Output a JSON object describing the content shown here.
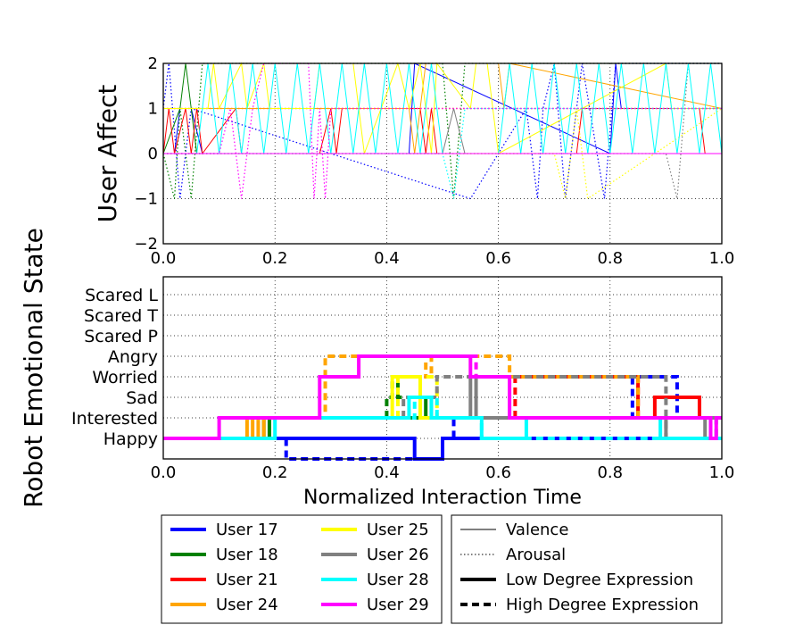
{
  "chart_data": [
    {
      "type": "line",
      "ylabel": "User Affect",
      "xlim": [
        0.0,
        1.0
      ],
      "ylim": [
        -2,
        2
      ],
      "xticks": [
        "0.0",
        "0.2",
        "0.4",
        "0.6",
        "0.8",
        "1.0"
      ],
      "yticks": [
        "−2",
        "−1",
        "0",
        "1",
        "2"
      ],
      "grid": true,
      "series": [
        {
          "name": "User 17",
          "color": "#0000ff",
          "valence_x": [
            0,
            0.02,
            0.03,
            0.05,
            0.07,
            0.44,
            0.45,
            0.8,
            0.81,
            0.82,
            1.0
          ],
          "valence_y": [
            0,
            0,
            1,
            1,
            0,
            0,
            2,
            0,
            2,
            1,
            1
          ],
          "arousal_x": [
            0,
            0.01,
            0.03,
            0.05,
            0.55,
            0.65,
            0.66,
            0.67,
            0.68,
            0.7,
            0.72,
            0.75,
            0.79,
            0.81,
            1.0
          ],
          "arousal_y": [
            1,
            2,
            -1,
            1,
            -1,
            1,
            0,
            -1,
            1,
            2,
            -1,
            2,
            -1,
            2,
            2
          ]
        },
        {
          "name": "User 18",
          "color": "#008000",
          "valence_x": [
            0,
            0.03,
            0.04,
            0.05,
            0.06,
            1.0
          ],
          "valence_y": [
            0,
            1,
            2,
            1,
            0,
            0
          ],
          "arousal_x": [
            0,
            0.02,
            0.03,
            0.05,
            0.07,
            0.5,
            0.52,
            0.54,
            1.0
          ],
          "arousal_y": [
            0,
            -1,
            1,
            -1,
            2,
            2,
            -1,
            2,
            2
          ]
        },
        {
          "name": "User 21",
          "color": "#ff0000",
          "valence_x": [
            0,
            0.01,
            0.02,
            0.04,
            0.05,
            0.06,
            0.07,
            0.13,
            0.14,
            0.28,
            0.3,
            0.31,
            0.32,
            0.46,
            0.47,
            0.48,
            0.49,
            0.74,
            0.75,
            0.96,
            0.97,
            1.0
          ],
          "valence_y": [
            0,
            1,
            0,
            1,
            0,
            1,
            0,
            1,
            0,
            0,
            1,
            0,
            1,
            1,
            0,
            1,
            0,
            0,
            1,
            1,
            0,
            0
          ],
          "arousal_x": [
            0,
            0.5,
            1.0
          ],
          "arousal_y": [
            1,
            1,
            1
          ]
        },
        {
          "name": "User 24",
          "color": "#ffa500",
          "valence_x": [
            0,
            0.44,
            0.45,
            0.46,
            0.47,
            0.6,
            0.61,
            0.62,
            1.0
          ],
          "valence_y": [
            1,
            1,
            0,
            1,
            2,
            2,
            1,
            2,
            1
          ],
          "arousal_x": [
            0,
            1.0
          ],
          "arousal_y": [
            1,
            1
          ]
        },
        {
          "name": "User 25",
          "color": "#ffff00",
          "valence_x": [
            0,
            0.08,
            0.09,
            0.1,
            0.14,
            0.15,
            0.18,
            0.19,
            0.27,
            0.28,
            0.34,
            0.36,
            0.42,
            0.44,
            0.46,
            0.48,
            0.49,
            0.55,
            0.56,
            0.58,
            0.6,
            0.9,
            0.91,
            1.0
          ],
          "valence_y": [
            1,
            1,
            2,
            1,
            2,
            1,
            2,
            1,
            1,
            2,
            2,
            0,
            2,
            1,
            2,
            0,
            2,
            1,
            2,
            2,
            0,
            2,
            1,
            1
          ],
          "arousal_x": [
            0,
            0.5,
            0.7,
            0.72,
            0.74,
            0.76,
            1.0
          ],
          "arousal_y": [
            0,
            0,
            0,
            -1,
            1,
            -1,
            1
          ]
        },
        {
          "name": "User 26",
          "color": "#808080",
          "valence_x": [
            0,
            0.5,
            0.52,
            0.54,
            0.56,
            1.0
          ],
          "valence_y": [
            0,
            0,
            1,
            0,
            0,
            0
          ],
          "arousal_x": [
            0,
            0.9,
            0.92,
            0.94,
            1.0
          ],
          "arousal_y": [
            0,
            0,
            -1,
            2,
            2
          ]
        },
        {
          "name": "User 28",
          "color": "#00ffff",
          "valence_x": [
            0,
            0.06,
            0.08,
            0.1,
            0.12,
            0.14,
            0.16,
            0.18,
            0.2,
            0.22,
            0.24,
            0.26,
            0.28,
            0.3,
            0.32,
            0.34,
            0.36,
            0.38,
            0.4,
            0.42,
            0.44,
            0.46,
            0.48,
            0.5,
            0.6,
            0.62,
            0.64,
            0.66,
            0.68,
            0.7,
            0.72,
            0.74,
            0.76,
            0.78,
            0.8,
            0.82,
            0.84,
            0.86,
            0.88,
            0.9,
            0.92,
            0.94,
            0.96,
            0.98,
            1.0
          ],
          "valence_y": [
            0,
            0,
            2,
            0,
            2,
            0,
            2,
            0,
            2,
            0,
            2,
            0,
            2,
            0,
            2,
            0,
            2,
            0,
            2,
            0,
            2,
            0,
            2,
            0,
            0,
            2,
            0,
            2,
            0,
            2,
            0,
            2,
            0,
            2,
            0,
            2,
            0,
            2,
            0,
            2,
            0,
            2,
            0,
            2,
            0
          ],
          "arousal_x": [
            0,
            0.5,
            0.52,
            0.54,
            1.0
          ],
          "arousal_y": [
            0,
            0,
            -1,
            1,
            1
          ]
        },
        {
          "name": "User 29",
          "color": "#ff00ff",
          "valence_x": [
            0,
            1.0
          ],
          "valence_y": [
            0,
            0
          ],
          "arousal_x": [
            0,
            0.1,
            0.12,
            0.14,
            0.16,
            0.18,
            0.26,
            0.27,
            0.28,
            0.29,
            0.3,
            1.0
          ],
          "arousal_y": [
            0,
            0,
            1,
            -1,
            1,
            2,
            2,
            -1,
            1,
            -1,
            1,
            1
          ]
        }
      ],
      "line_style_legend": [
        {
          "label": "Valence",
          "style": "solid-thin"
        },
        {
          "label": "Arousal",
          "style": "dotted-thin"
        }
      ]
    },
    {
      "type": "line",
      "ylabel": "Robot Emotional State",
      "xlabel": "Normalized Interaction Time",
      "xlim": [
        0.0,
        1.0
      ],
      "xticks": [
        "0.0",
        "0.2",
        "0.4",
        "0.6",
        "0.8",
        "1.0"
      ],
      "categories": [
        "Happy",
        "Interested",
        "Sad",
        "Worried",
        "Angry",
        "Scared P",
        "Scared T",
        "Scared L"
      ],
      "grid": true,
      "series": [
        {
          "name": "User 17",
          "color": "#0000ff",
          "low": [
            [
              0,
              0
            ],
            [
              0.45,
              0
            ],
            [
              0.45,
              -1
            ],
            [
              0.5,
              -1
            ],
            [
              0.5,
              0
            ],
            [
              1.0,
              0
            ]
          ],
          "high": [
            [
              0.2,
              0
            ],
            [
              0.22,
              0
            ],
            [
              0.22,
              -1
            ],
            [
              0.5,
              -1
            ],
            [
              0.5,
              0
            ],
            [
              0.52,
              0
            ],
            [
              0.52,
              1
            ],
            [
              0.84,
              1
            ],
            [
              0.84,
              3
            ],
            [
              0.92,
              3
            ],
            [
              0.92,
              1
            ],
            [
              1.0,
              1
            ]
          ]
        },
        {
          "name": "User 18",
          "color": "#008000",
          "low": [
            [
              0.18,
              1
            ],
            [
              0.18,
              0
            ],
            [
              0.19,
              0
            ],
            [
              0.19,
              1
            ],
            [
              0.47,
              1
            ],
            [
              0.47,
              2
            ],
            [
              0.48,
              2
            ],
            [
              0.48,
              1
            ],
            [
              1.0,
              1
            ]
          ],
          "high": [
            [
              0.4,
              1
            ],
            [
              0.4,
              2
            ],
            [
              0.41,
              2
            ],
            [
              0.41,
              3
            ],
            [
              0.42,
              3
            ],
            [
              0.42,
              2
            ],
            [
              0.47,
              2
            ]
          ]
        },
        {
          "name": "User 21",
          "color": "#ff0000",
          "low": [
            [
              0.62,
              3
            ],
            [
              0.85,
              3
            ],
            [
              0.85,
              1
            ],
            [
              0.88,
              1
            ],
            [
              0.88,
              2
            ],
            [
              0.96,
              2
            ],
            [
              0.96,
              1
            ],
            [
              1.0,
              1
            ]
          ],
          "high": [
            [
              0.63,
              1
            ],
            [
              0.63,
              3
            ],
            [
              0.85,
              3
            ],
            [
              0.85,
              1
            ]
          ]
        },
        {
          "name": "User 24",
          "color": "#ffa500",
          "low": [
            [
              0.15,
              0
            ],
            [
              0.15,
              1
            ],
            [
              0.16,
              1
            ],
            [
              0.16,
              0
            ],
            [
              0.17,
              0
            ],
            [
              0.17,
              1
            ],
            [
              0.18,
              1
            ],
            [
              0.18,
              0
            ]
          ],
          "high": [
            [
              0.28,
              1
            ],
            [
              0.29,
              1
            ],
            [
              0.29,
              4
            ],
            [
              0.47,
              4
            ],
            [
              0.47,
              3
            ],
            [
              0.48,
              3
            ],
            [
              0.48,
              4
            ],
            [
              0.62,
              4
            ],
            [
              0.62,
              3
            ],
            [
              0.85,
              3
            ],
            [
              0.85,
              1
            ]
          ]
        },
        {
          "name": "User 25",
          "color": "#ffff00",
          "low": [
            [
              0.41,
              1
            ],
            [
              0.41,
              3
            ],
            [
              0.46,
              3
            ],
            [
              0.46,
              1
            ],
            [
              0.49,
              1
            ]
          ],
          "high": [
            [
              0.42,
              1
            ],
            [
              0.42,
              3
            ],
            [
              0.49,
              3
            ],
            [
              0.49,
              1
            ]
          ]
        },
        {
          "name": "User 26",
          "color": "#808080",
          "low": [
            [
              0.55,
              1
            ],
            [
              0.55,
              3
            ],
            [
              0.56,
              3
            ],
            [
              0.56,
              1
            ],
            [
              0.9,
              1
            ],
            [
              0.9,
              0
            ],
            [
              0.97,
              0
            ],
            [
              0.97,
              1
            ],
            [
              1.0,
              1
            ]
          ],
          "high": [
            [
              0.43,
              1
            ],
            [
              0.43,
              2
            ],
            [
              0.49,
              2
            ],
            [
              0.49,
              3
            ],
            [
              0.57,
              3
            ],
            [
              0.9,
              3
            ],
            [
              0.9,
              0
            ],
            [
              0.99,
              0
            ],
            [
              0.99,
              1
            ],
            [
              1.0,
              1
            ]
          ]
        },
        {
          "name": "User 28",
          "color": "#00ffff",
          "low": [
            [
              0.1,
              0
            ],
            [
              0.2,
              0
            ],
            [
              0.2,
              1
            ],
            [
              0.44,
              1
            ],
            [
              0.44,
              2
            ],
            [
              0.48,
              2
            ],
            [
              0.48,
              1
            ],
            [
              0.57,
              1
            ],
            [
              0.57,
              0
            ],
            [
              0.65,
              0
            ],
            [
              0.65,
              1
            ],
            [
              0.89,
              1
            ],
            [
              0.89,
              0
            ],
            [
              1.0,
              0
            ]
          ],
          "high": [
            [
              0.3,
              1
            ],
            [
              0.45,
              1
            ],
            [
              0.45,
              2
            ],
            [
              0.49,
              2
            ],
            [
              0.49,
              1
            ],
            [
              0.5,
              1
            ],
            [
              0.57,
              1
            ],
            [
              0.57,
              0
            ],
            [
              1.0,
              0
            ]
          ]
        },
        {
          "name": "User 29",
          "color": "#ff00ff",
          "low": [
            [
              0,
              0
            ],
            [
              0.1,
              0
            ],
            [
              0.1,
              1
            ],
            [
              0.28,
              1
            ],
            [
              0.28,
              3
            ],
            [
              0.35,
              3
            ],
            [
              0.35,
              4
            ],
            [
              0.55,
              4
            ],
            [
              0.55,
              3
            ],
            [
              0.62,
              3
            ],
            [
              0.62,
              1
            ],
            [
              0.98,
              1
            ],
            [
              0.98,
              0
            ],
            [
              0.99,
              0
            ],
            [
              0.99,
              1
            ],
            [
              1.0,
              1
            ]
          ],
          "high": [
            [
              0.55,
              4
            ],
            [
              0.56,
              4
            ],
            [
              0.56,
              3
            ],
            [
              0.62,
              3
            ]
          ]
        }
      ],
      "line_style_legend": [
        {
          "label": "Low Degree Expression",
          "style": "solid-thick"
        },
        {
          "label": "High Degree Expression",
          "style": "dashed-thick"
        }
      ]
    }
  ]
}
